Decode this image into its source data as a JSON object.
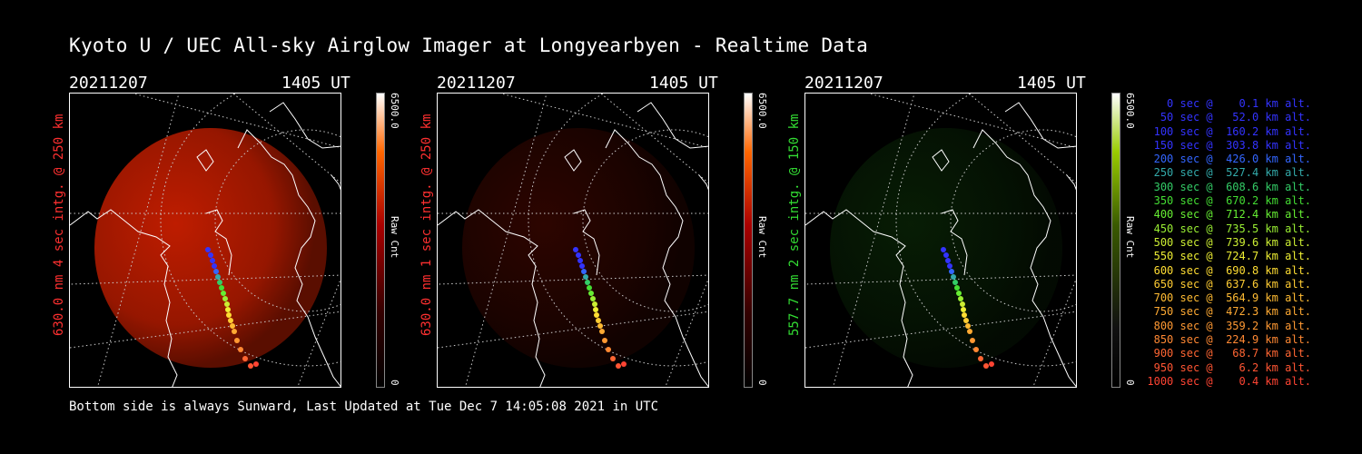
{
  "header": {
    "title": "Kyoto U / UEC All-sky Airglow Imager at Longyearbyen - Realtime Data"
  },
  "footer": {
    "text": "Bottom side is always Sunward, Last Updated at Tue Dec  7 14:05:08 2021 in UTC"
  },
  "panels": [
    {
      "date": "20211207",
      "time": "1405 UT",
      "side_label": "630.0 nm 4 sec intg. @ 250 km",
      "label_color": "#ff3030",
      "cbar_max": "6500.0",
      "cbar_label": "Raw Cnt",
      "cbar_min": "0",
      "glow_color": "#c81e00",
      "glow_level": 0.75
    },
    {
      "date": "20211207",
      "time": "1405 UT",
      "side_label": "630.0 nm 1 sec intg. @ 250 km",
      "label_color": "#ff3030",
      "cbar_max": "6500.0",
      "cbar_label": "Raw Cnt",
      "cbar_min": "0",
      "glow_color": "#5a0a00",
      "glow_level": 0.3
    },
    {
      "date": "20211207",
      "time": "1405 UT",
      "side_label": "557.7 nm 2 sec intg. @ 150 km",
      "label_color": "#33dd33",
      "cbar_max": "6500.0",
      "cbar_label": "Raw Cnt",
      "cbar_min": "0",
      "glow_color": "#0f3a0a",
      "glow_level": 0.3
    }
  ],
  "legend": [
    {
      "text": "   0 sec @    0.1 km alt.",
      "color": "#3333ff"
    },
    {
      "text": "  50 sec @   52.0 km alt.",
      "color": "#3333ff"
    },
    {
      "text": " 100 sec @  160.2 km alt.",
      "color": "#3333ff"
    },
    {
      "text": " 150 sec @  303.8 km alt.",
      "color": "#3333ff"
    },
    {
      "text": " 200 sec @  426.0 km alt.",
      "color": "#3366ff"
    },
    {
      "text": " 250 sec @  527.4 km alt.",
      "color": "#33aaaa"
    },
    {
      "text": " 300 sec @  608.6 km alt.",
      "color": "#33cc66"
    },
    {
      "text": " 350 sec @  670.2 km alt.",
      "color": "#44dd33"
    },
    {
      "text": " 400 sec @  712.4 km alt.",
      "color": "#66ee33"
    },
    {
      "text": " 450 sec @  735.5 km alt.",
      "color": "#99ee33"
    },
    {
      "text": " 500 sec @  739.6 km alt.",
      "color": "#ccee33"
    },
    {
      "text": " 550 sec @  724.7 km alt.",
      "color": "#eeee33"
    },
    {
      "text": " 600 sec @  690.8 km alt.",
      "color": "#ffdd33"
    },
    {
      "text": " 650 sec @  637.6 km alt.",
      "color": "#ffcc33"
    },
    {
      "text": " 700 sec @  564.9 km alt.",
      "color": "#ffbb33"
    },
    {
      "text": " 750 sec @  472.3 km alt.",
      "color": "#ffaa33"
    },
    {
      "text": " 800 sec @  359.2 km alt.",
      "color": "#ff9933"
    },
    {
      "text": " 850 sec @  224.9 km alt.",
      "color": "#ff8833"
    },
    {
      "text": " 900 sec @   68.7 km alt.",
      "color": "#ff6633"
    },
    {
      "text": " 950 sec @    6.2 km alt.",
      "color": "#ff5533"
    },
    {
      "text": "1000 sec @    0.4 km alt.",
      "color": "#ff4433"
    }
  ]
}
